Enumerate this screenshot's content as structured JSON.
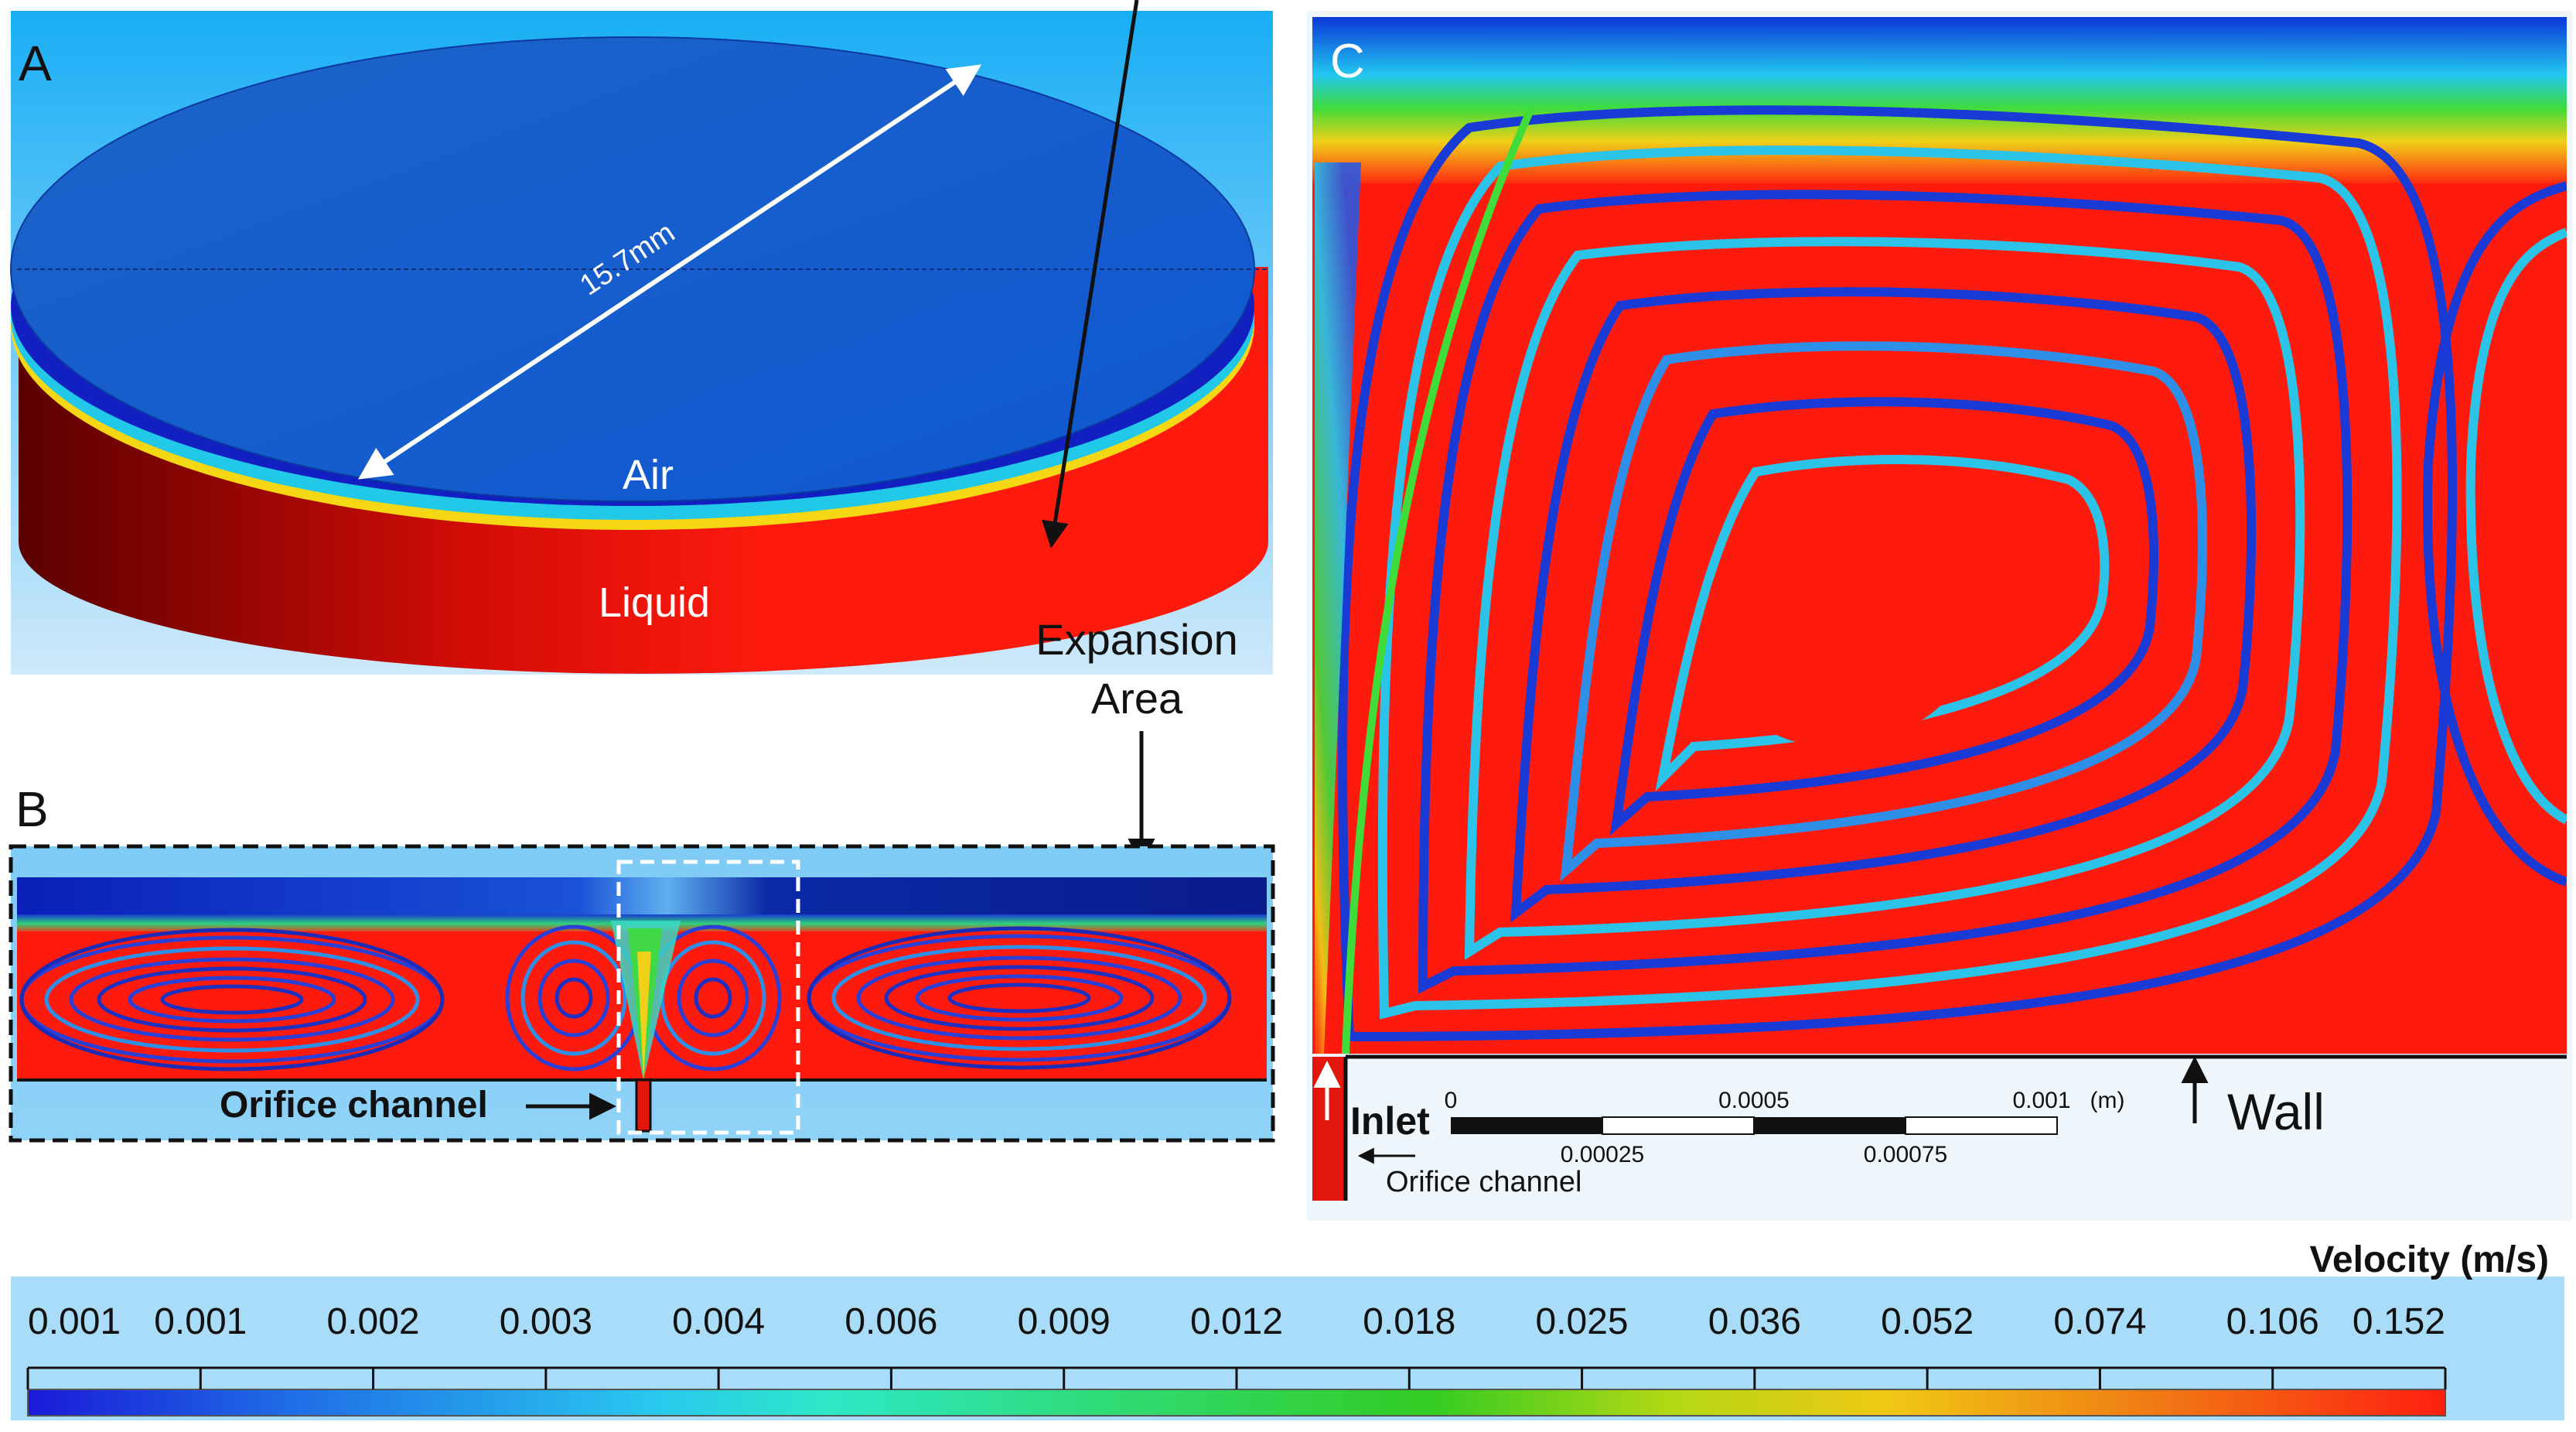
{
  "panel_a": {
    "letter": "A",
    "diameter_label": "15.7mm",
    "air_label": "Air",
    "liquid_label": "Liquid",
    "expansion_label_line1": "Expansion",
    "expansion_label_line2": "Area"
  },
  "panel_b": {
    "letter": "B",
    "orifice_label": "Orifice channel"
  },
  "panel_c": {
    "letter": "C",
    "inlet_label": "Inlet",
    "orifice_label": "Orifice channel",
    "wall_label": "Wall",
    "scale_bar": {
      "top_ticks": [
        "0",
        "0.0005",
        "0.001"
      ],
      "bottom_ticks": [
        "0.00025",
        "0.00075"
      ],
      "unit": "(m)"
    }
  },
  "colorbar": {
    "title": "Velocity  (m/s)",
    "ticks": [
      "0.001",
      "0.001",
      "0.002",
      "0.003",
      "0.004",
      "0.006",
      "0.009",
      "0.012",
      "0.018",
      "0.025",
      "0.036",
      "0.052",
      "0.074",
      "0.106",
      "0.152"
    ],
    "colors": [
      "#1a1ad8",
      "#1f6ee6",
      "#29c8ef",
      "#2ee8c8",
      "#2fdc7a",
      "#33cc22",
      "#b4d814",
      "#f0c814",
      "#f07a14",
      "#ff1e10"
    ]
  },
  "colors": {
    "liquid": "#ff1a0e",
    "air": "#1155d6",
    "background_blue": "#33b8f5",
    "pale_blue": "#b9e3fb"
  }
}
